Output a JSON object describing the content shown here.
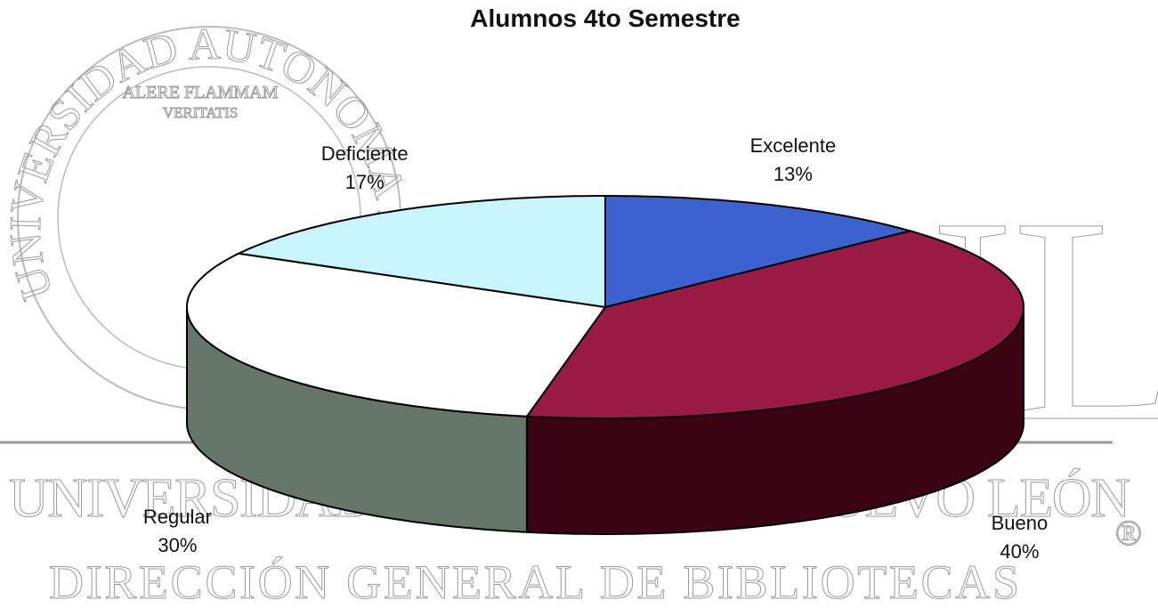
{
  "chart_data": {
    "type": "pie3d",
    "title": "Alumnos 4to Semestre",
    "categories": [
      "Excelente",
      "Bueno",
      "Regular",
      "Deficiente"
    ],
    "values": [
      13,
      40,
      30,
      17
    ],
    "value_labels": [
      "13%",
      "40%",
      "30%",
      "17%"
    ],
    "colors": [
      "#3b62d0",
      "#9a1a46",
      "#ffffff",
      "#c8f4fb"
    ],
    "side_colors": [
      "#27419a",
      "#3a0412",
      "#66766a",
      "#8ab0b8"
    ]
  },
  "watermark": {
    "seal_ring": "UNIVERSIDAD AUTONOMA DE NUEVO LEON",
    "motto_1": "ALERE FLAMMAM",
    "motto_2": "VERITATIS",
    "logo": "UANL",
    "line_1": "UNIVERSIDAD AUTÓNOMA DE NUEVO LEÓN",
    "line_2": "DIRECCIÓN GENERAL DE BIBLIOTECAS",
    "mark": "®"
  }
}
